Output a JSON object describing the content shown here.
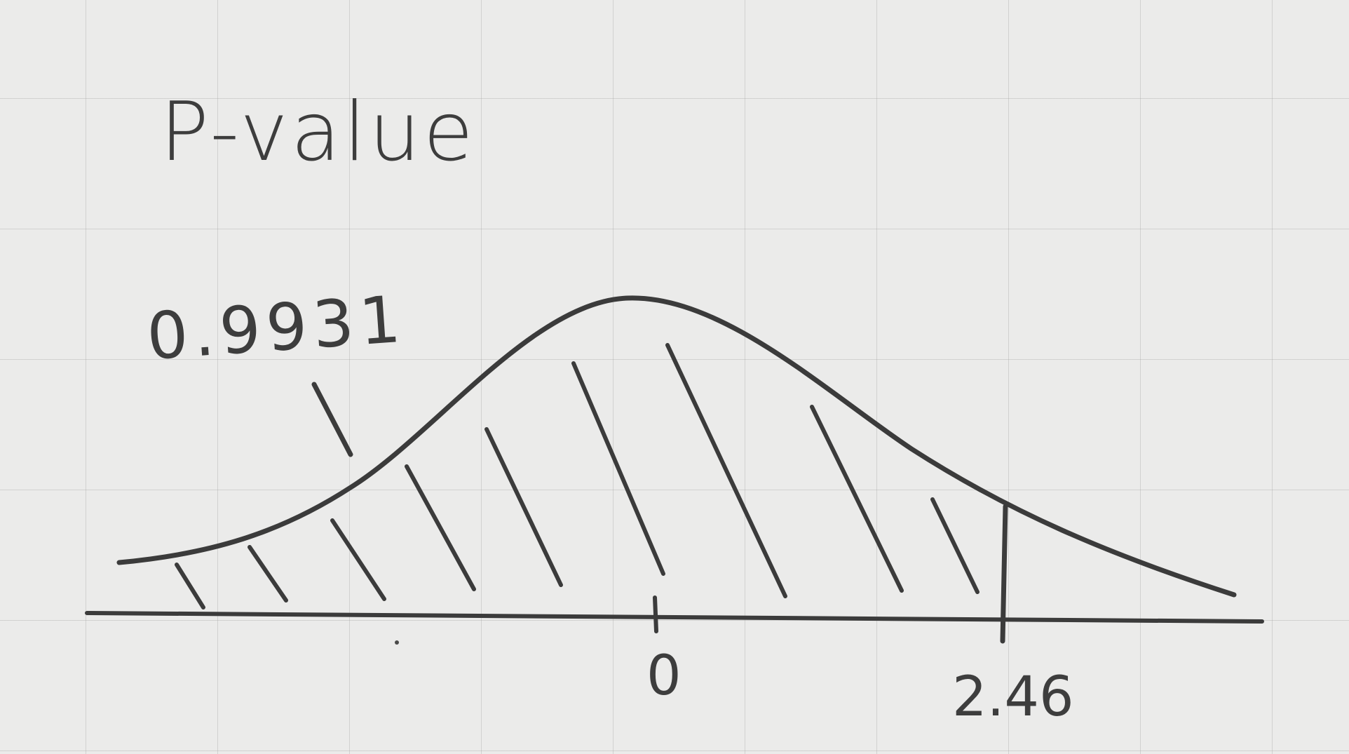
{
  "title": "P-value",
  "probability_label": "0.9931",
  "x_axis": {
    "tick_labels": [
      "0",
      "2.46"
    ]
  },
  "shaded_region": "left of 2.46",
  "colors": {
    "paper": "#ebebea",
    "grid": "#969696",
    "pencil": "#3b3b3b"
  }
}
